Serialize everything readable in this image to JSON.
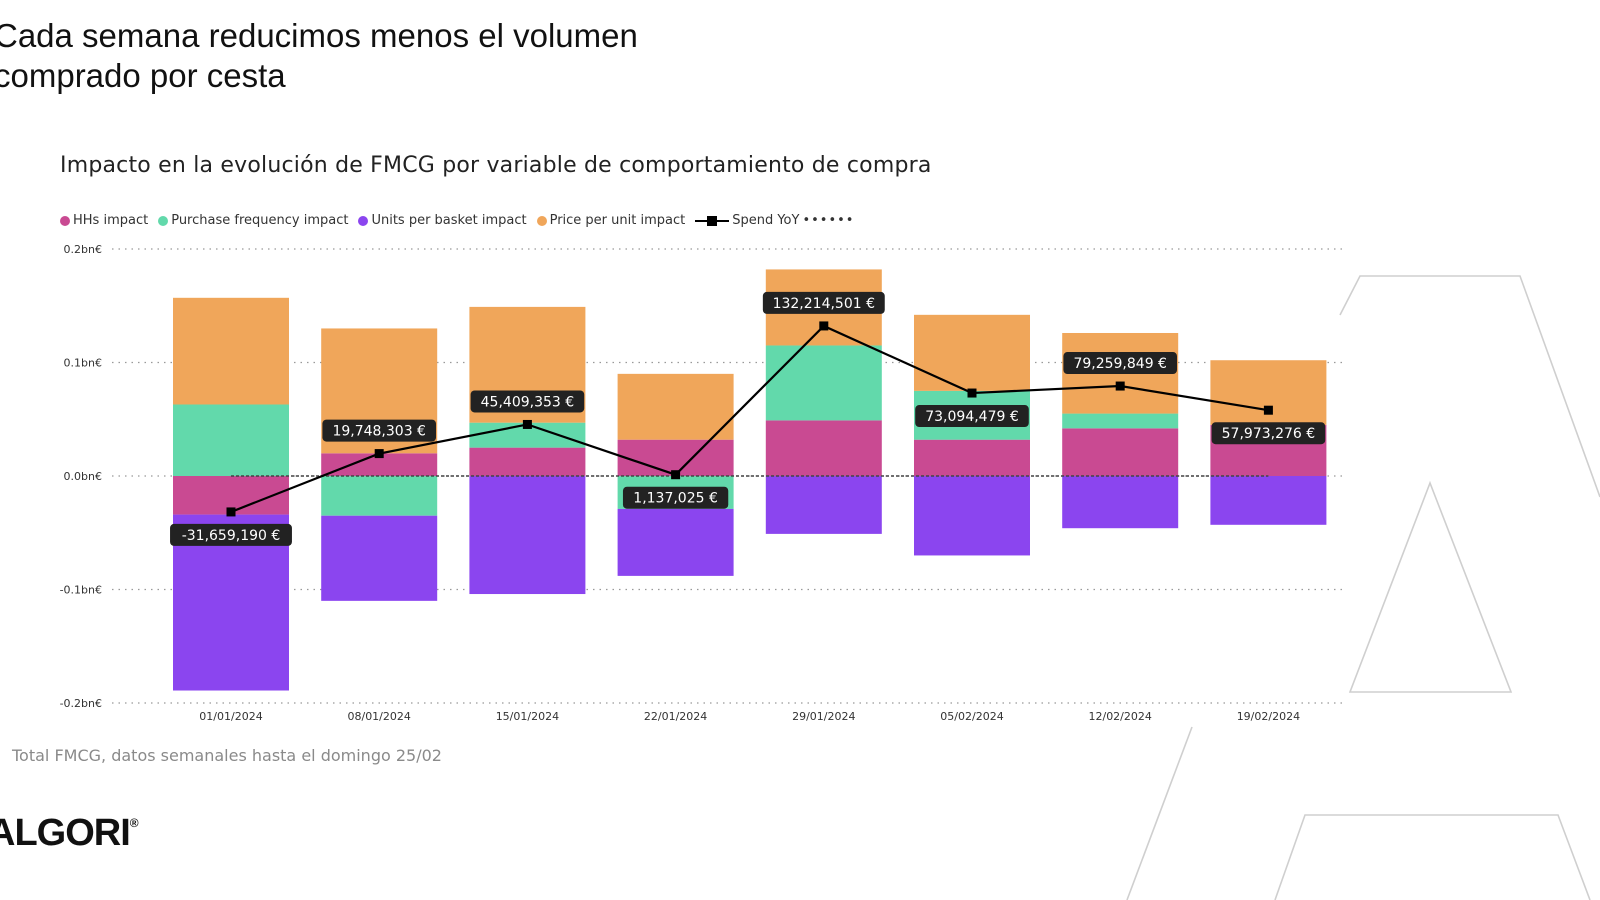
{
  "headline": "Cada semana reducimos menos el volumen comprado por cesta",
  "headline_lines": [
    "Cada semana reducimos menos el volumen",
    "comprado por cesta"
  ],
  "footnote": "Total FMCG, datos semanales hasta el domingo 25/02",
  "logo": {
    "text": "ALGORI",
    "mark": "®"
  },
  "colors": {
    "hhs": "#c94a92",
    "frequency": "#62d9ab",
    "units": "#8b45ef",
    "price": "#f0a65a",
    "line": "#000000",
    "label_bg": "#222222",
    "label_text": "#ffffff",
    "grid": "#999999",
    "watermark": "#cfcfcf"
  },
  "chart_data": {
    "type": "bar",
    "stacked": true,
    "title": "Impacto en la evolución de FMCG por variable de comportamiento de compra",
    "xlabel": "",
    "ylabel": "",
    "unit": "bn€",
    "ylim": [
      -0.2,
      0.2
    ],
    "yticks": [
      0.2,
      0.1,
      0.0,
      -0.1,
      -0.2
    ],
    "ytick_labels": [
      "0.2bn€",
      "0.1bn€",
      "0.0bn€",
      "-0.1bn€",
      "-0.2bn€"
    ],
    "grid": true,
    "legend_position": "top-left",
    "categories": [
      "01/01/2024",
      "08/01/2024",
      "15/01/2024",
      "22/01/2024",
      "29/01/2024",
      "05/02/2024",
      "12/02/2024",
      "19/02/2024"
    ],
    "series": [
      {
        "name": "HHs impact",
        "key": "hhs",
        "values": [
          -0.034,
          0.02,
          0.025,
          0.032,
          0.049,
          0.032,
          0.042,
          0.045
        ]
      },
      {
        "name": "Purchase frequency impact",
        "key": "frequency",
        "values": [
          0.063,
          -0.035,
          0.022,
          -0.029,
          0.066,
          0.043,
          0.013,
          0.0
        ]
      },
      {
        "name": "Units per basket impact",
        "key": "units",
        "values": [
          -0.155,
          -0.075,
          -0.104,
          -0.059,
          -0.051,
          -0.07,
          -0.046,
          -0.043
        ]
      },
      {
        "name": "Price per unit impact",
        "key": "price",
        "values": [
          0.094,
          0.11,
          0.102,
          0.058,
          0.067,
          0.067,
          0.071,
          0.057
        ]
      }
    ],
    "line_series": {
      "name": "Spend YoY",
      "type": "line",
      "values": [
        -0.03165919,
        0.019748303,
        0.045409353,
        0.001137025,
        0.132214501,
        0.073094479,
        0.079259849,
        0.057973276
      ],
      "labels": [
        "-31,659,190 €",
        "19,748,303 €",
        "45,409,353 €",
        "1,137,025 €",
        "132,214,501 €",
        "73,094,479 €",
        "79,259,849 €",
        "57,973,276 €"
      ],
      "label_position": [
        "below",
        "above",
        "above",
        "below",
        "above",
        "below",
        "above",
        "below"
      ]
    },
    "reference_line": {
      "name": "Spend YoY baseline",
      "value": 0.0,
      "style": "dotted"
    },
    "legend": [
      {
        "label": "HHs impact",
        "type": "dot",
        "key": "hhs"
      },
      {
        "label": "Purchase frequency impact",
        "type": "dot",
        "key": "frequency"
      },
      {
        "label": "Units per basket impact",
        "type": "dot",
        "key": "units"
      },
      {
        "label": "Price per unit impact",
        "type": "dot",
        "key": "price"
      },
      {
        "label": "Spend YoY",
        "type": "line"
      }
    ]
  }
}
